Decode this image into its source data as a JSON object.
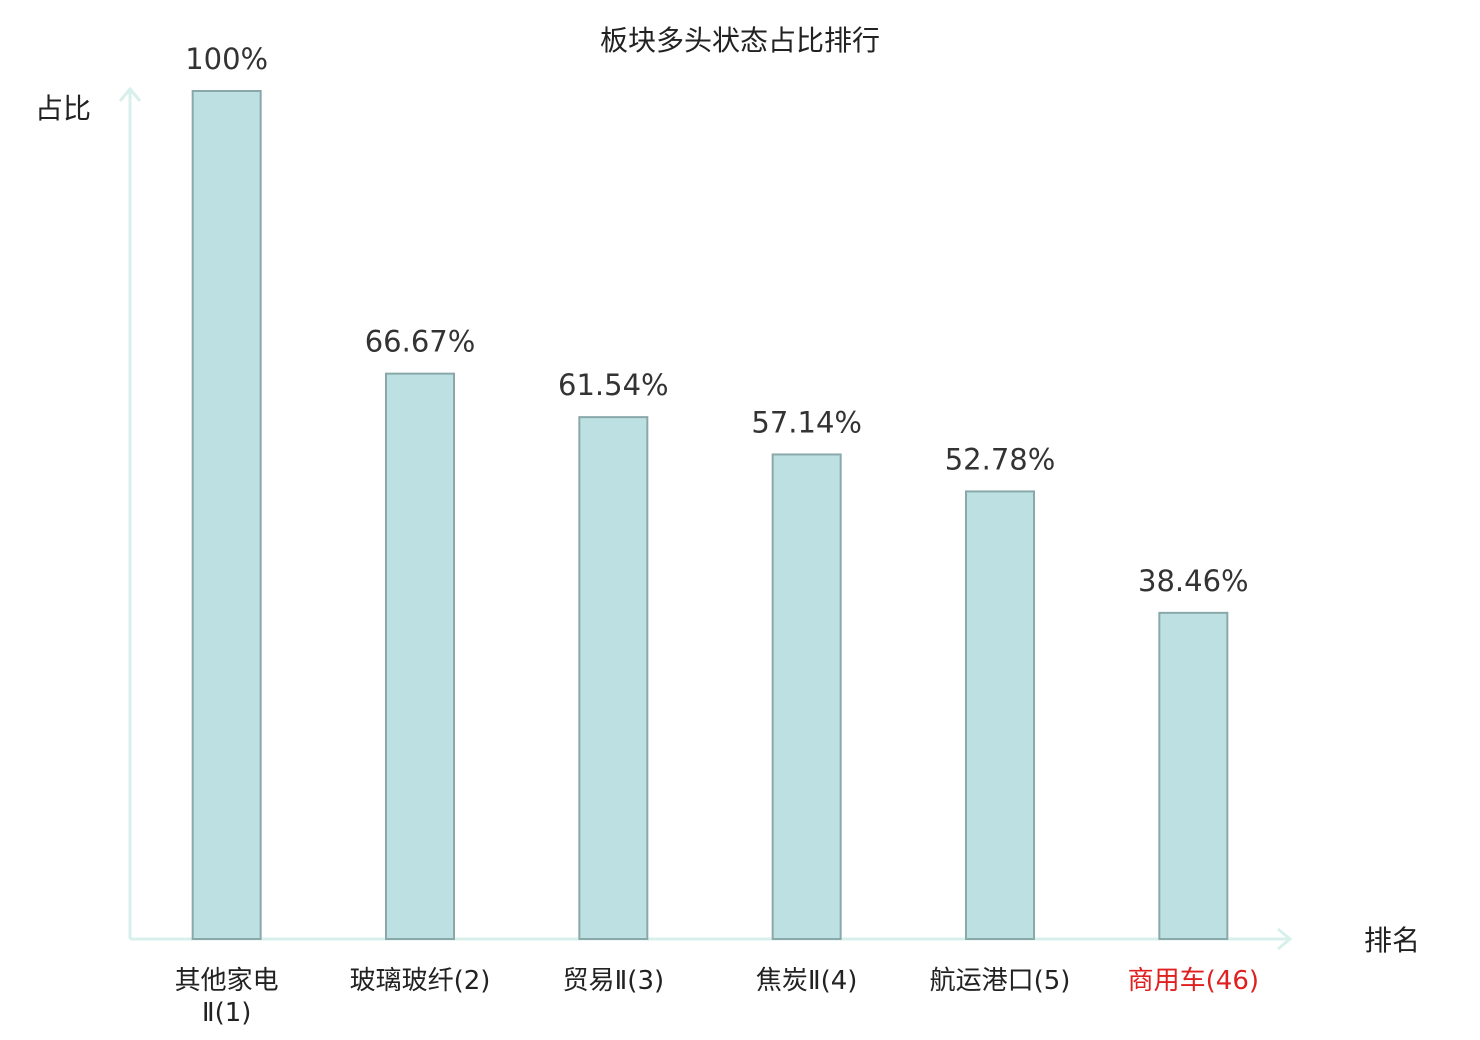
{
  "chart_data": {
    "type": "bar",
    "title": "板块多头状态占比排行",
    "y_label": "占比",
    "x_label": "排名",
    "categories": [
      "其他家电Ⅱ(1)",
      "玻璃玻纤(2)",
      "贸易Ⅱ(3)",
      "焦炭Ⅱ(4)",
      "航运港口(5)",
      "商用车(46)"
    ],
    "values": [
      100,
      66.67,
      61.54,
      57.14,
      52.78,
      38.46
    ],
    "value_labels": [
      "100%",
      "66.67%",
      "61.54%",
      "57.14%",
      "52.78%",
      "38.46%"
    ],
    "category_colors": [
      "#222222",
      "#222222",
      "#222222",
      "#222222",
      "#222222",
      "#e02020"
    ],
    "color": "#bde0e2",
    "edge_color": "#8aa8aa",
    "axis_color": "#d8f0ec",
    "ylim": [
      0,
      100
    ]
  }
}
